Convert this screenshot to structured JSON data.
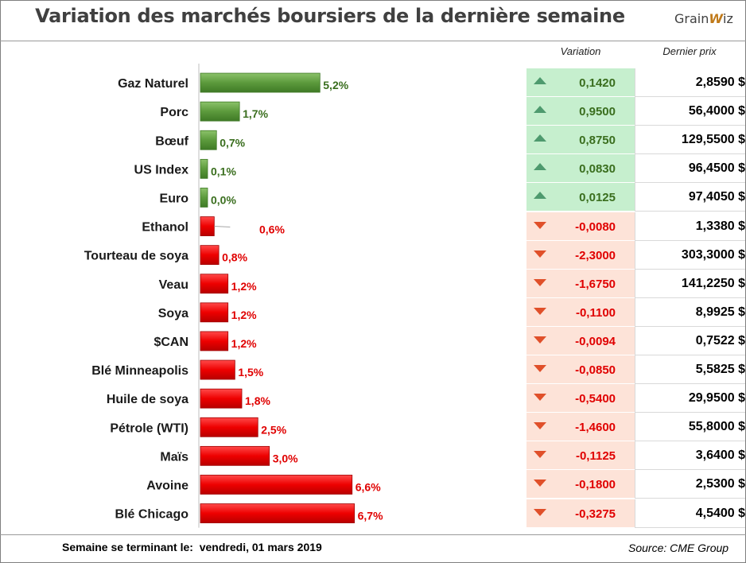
{
  "title": "Variation des marchés boursiers de la dernière semaine",
  "logo": {
    "prefix": "Grain",
    "accent": "W",
    "suffix": "iz"
  },
  "headers": {
    "variation": "Variation",
    "price": "Dernier prix"
  },
  "footer": {
    "week_label": "Semaine se terminant le:",
    "week_date": "vendredi, 01 mars 2019",
    "source": "Source: CME Group"
  },
  "colors": {
    "up_bar": "#5c9a3c",
    "down_bar": "#ee0000",
    "up_text": "#3a6e1e",
    "down_text": "#e00000",
    "up_bg": "#c6efce",
    "down_bg": "#fde3d8",
    "up_arrow": "#4e9a6e",
    "down_arrow": "#e0502a"
  },
  "chart_data": {
    "type": "bar",
    "orientation": "horizontal",
    "categories": [
      "Gaz Naturel",
      "Porc",
      "Bœuf",
      "US Index",
      "Euro",
      "Ethanol",
      "Tourteau de soya",
      "Veau",
      "Soya",
      "$CAN",
      "Blé Minneapolis",
      "Huile de soya",
      "Pétrole (WTI)",
      "Maïs",
      "Avoine",
      "Blé Chicago"
    ],
    "values": [
      5.2,
      1.7,
      0.7,
      0.1,
      0.0,
      0.6,
      0.8,
      1.2,
      1.2,
      1.2,
      1.5,
      1.8,
      2.5,
      3.0,
      6.6,
      6.7
    ],
    "labels": [
      "5,2%",
      "1,7%",
      "0,7%",
      "0,1%",
      "0,0%",
      "0,6%",
      "0,8%",
      "1,2%",
      "1,2%",
      "1,2%",
      "1,5%",
      "1,8%",
      "2,5%",
      "3,0%",
      "6,6%",
      "6,7%"
    ],
    "direction": [
      "up",
      "up",
      "up",
      "up",
      "up",
      "down",
      "down",
      "down",
      "down",
      "down",
      "down",
      "down",
      "down",
      "down",
      "down",
      "down"
    ],
    "xlim": [
      0,
      8
    ],
    "unit": "%"
  },
  "table": [
    {
      "variation": "0,1420",
      "price": "2,8590 $",
      "direction": "up"
    },
    {
      "variation": "0,9500",
      "price": "56,4000 $",
      "direction": "up"
    },
    {
      "variation": "0,8750",
      "price": "129,5500 $",
      "direction": "up"
    },
    {
      "variation": "0,0830",
      "price": "96,4500 $",
      "direction": "up"
    },
    {
      "variation": "0,0125",
      "price": "97,4050 $",
      "direction": "up"
    },
    {
      "variation": "-0,0080",
      "price": "1,3380 $",
      "direction": "down"
    },
    {
      "variation": "-2,3000",
      "price": "303,3000 $",
      "direction": "down"
    },
    {
      "variation": "-1,6750",
      "price": "141,2250 $",
      "direction": "down"
    },
    {
      "variation": "-0,1100",
      "price": "8,9925 $",
      "direction": "down"
    },
    {
      "variation": "-0,0094",
      "price": "0,7522 $",
      "direction": "down"
    },
    {
      "variation": "-0,0850",
      "price": "5,5825 $",
      "direction": "down"
    },
    {
      "variation": "-0,5400",
      "price": "29,9500 $",
      "direction": "down"
    },
    {
      "variation": "-1,4600",
      "price": "55,8000 $",
      "direction": "down"
    },
    {
      "variation": "-0,1125",
      "price": "3,6400 $",
      "direction": "down"
    },
    {
      "variation": "-0,1800",
      "price": "2,5300 $",
      "direction": "down"
    },
    {
      "variation": "-0,3275",
      "price": "4,5400 $",
      "direction": "down"
    }
  ]
}
